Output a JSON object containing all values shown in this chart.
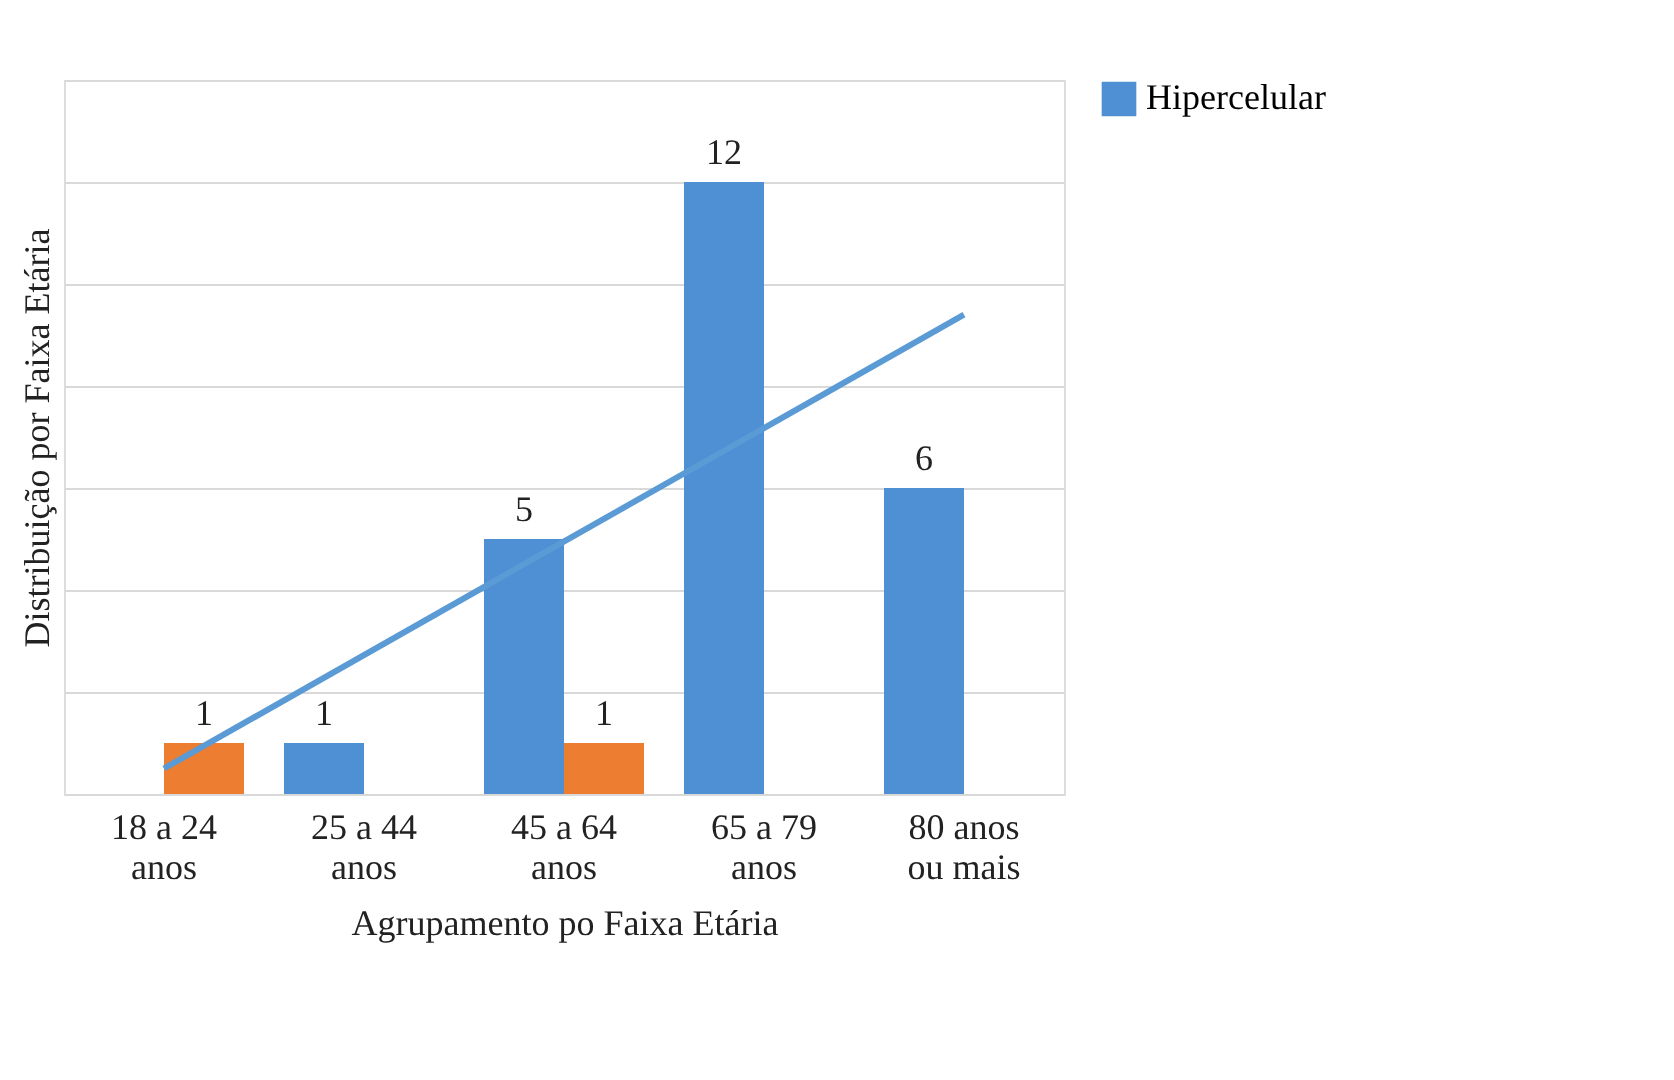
{
  "chart_data": {
    "type": "bar",
    "xlabel": "Agrupamento po Faixa Etária",
    "ylabel": "Distribuição por Faixa Etária",
    "categories": [
      "18 a 24\nanos",
      "25 a 44\nanos",
      "45 a 64\nanos",
      "65 a 79\nanos",
      "80 anos\nou mais"
    ],
    "series": [
      {
        "name": "Hipercelular",
        "color": "#4f8fd3",
        "values": [
          null,
          1,
          5,
          12,
          6
        ],
        "value_labels": [
          null,
          "1",
          "5",
          "12",
          "6"
        ]
      },
      {
        "color": "#ed7d31",
        "values": [
          1,
          null,
          1,
          null,
          null
        ],
        "value_labels": [
          "1",
          null,
          "1",
          null,
          null
        ]
      },
      {
        "type": "line",
        "color": "#5b9bd5",
        "x": [
          "18 a 24\nanos",
          "80 anos\nou mais"
        ],
        "values": [
          0.5,
          9.4
        ]
      }
    ],
    "ylim": [
      0,
      14
    ],
    "yticks": [
      {
        "value": 0,
        "label": null
      },
      {
        "value": 2,
        "label": null
      },
      {
        "value": 4,
        "label": null
      },
      {
        "value": 6,
        "label": null
      },
      {
        "value": 8,
        "label": null
      },
      {
        "value": 10,
        "label": null
      },
      {
        "value": 12,
        "label": null
      },
      {
        "value": 14,
        "label": null
      }
    ],
    "grid": "y",
    "tick_labels": "x",
    "legend": "right"
  }
}
